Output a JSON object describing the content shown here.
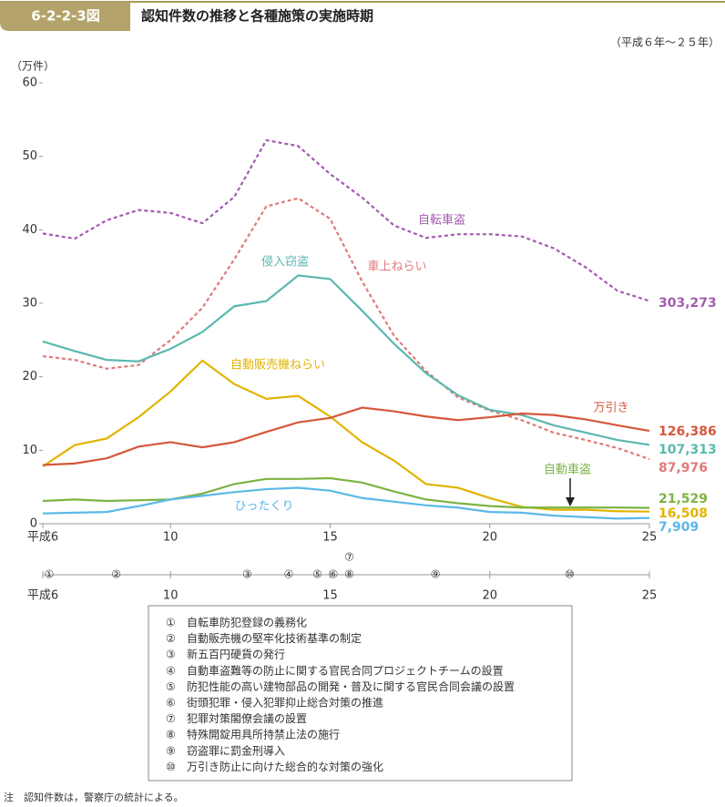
{
  "figure_number": "6-2-2-3図",
  "chart_data": {
    "type": "line",
    "title": "認知件数の推移と各種施策の実施時期",
    "subtitle": "（平成６年～２５年）",
    "y_label": "（万件）",
    "x": [
      6,
      7,
      8,
      9,
      10,
      11,
      12,
      13,
      14,
      15,
      16,
      17,
      18,
      19,
      20,
      21,
      22,
      23,
      24,
      25
    ],
    "xlim": [
      6,
      25
    ],
    "xticks": [
      {
        "value": 6,
        "label": "平成6"
      },
      10,
      15,
      20,
      25
    ],
    "ylim": [
      0,
      60
    ],
    "yticks": [
      0,
      10,
      20,
      30,
      40,
      50,
      60
    ],
    "series": [
      {
        "name": "自転車盗",
        "color": "#a45bb0",
        "style": "dashed",
        "values": [
          39.5,
          38.8,
          41.3,
          42.7,
          42.3,
          40.9,
          44.5,
          52.2,
          51.4,
          47.6,
          44.4,
          40.6,
          38.9,
          39.4,
          39.4,
          39.1,
          37.5,
          34.9,
          31.7,
          30.3273
        ],
        "value_labels": [
          null,
          null,
          null,
          null,
          null,
          null,
          null,
          null,
          null,
          null,
          null,
          null,
          null,
          null,
          null,
          null,
          null,
          null,
          null,
          "303,273"
        ]
      },
      {
        "name": "車上ねらい",
        "color": "#e07a7a",
        "style": "dashed",
        "values": [
          22.8,
          22.3,
          21.1,
          21.6,
          25.0,
          29.4,
          36.0,
          43.2,
          44.3,
          41.5,
          33.0,
          25.6,
          20.8,
          17.2,
          15.4,
          14.1,
          12.4,
          11.4,
          10.3,
          8.7976
        ],
        "value_labels": [
          null,
          null,
          null,
          null,
          null,
          null,
          null,
          null,
          null,
          null,
          null,
          null,
          null,
          null,
          null,
          null,
          null,
          null,
          null,
          "87,976"
        ]
      },
      {
        "name": "侵入窃盗",
        "color": "#5bb8b0",
        "style": "solid",
        "values": [
          24.8,
          23.5,
          22.3,
          22.1,
          23.8,
          26.1,
          29.6,
          30.3,
          33.8,
          33.3,
          29.0,
          24.5,
          20.5,
          17.5,
          15.5,
          14.8,
          13.4,
          12.4,
          11.4,
          10.7313
        ],
        "value_labels": [
          null,
          null,
          null,
          null,
          null,
          null,
          null,
          null,
          null,
          null,
          null,
          null,
          null,
          null,
          null,
          null,
          null,
          null,
          null,
          "107,313"
        ]
      },
      {
        "name": "自動販売機ねらい",
        "color": "#e2b300",
        "style": "solid",
        "values": [
          7.8,
          10.7,
          11.6,
          14.5,
          18.0,
          22.2,
          19.0,
          17.0,
          17.4,
          14.6,
          11.1,
          8.6,
          5.4,
          4.9,
          3.5,
          2.3,
          1.9,
          1.9,
          1.7,
          1.6508
        ],
        "value_labels": [
          null,
          null,
          null,
          null,
          null,
          null,
          null,
          null,
          null,
          null,
          null,
          null,
          null,
          null,
          null,
          null,
          null,
          null,
          null,
          "16,508"
        ]
      },
      {
        "name": "万引き",
        "color": "#d5573b",
        "style": "solid",
        "values": [
          8.0,
          8.2,
          8.9,
          10.5,
          11.1,
          10.4,
          11.1,
          12.5,
          13.8,
          14.4,
          15.8,
          15.3,
          14.6,
          14.1,
          14.5,
          15.0,
          14.8,
          14.2,
          13.4,
          12.6386
        ],
        "value_labels": [
          null,
          null,
          null,
          null,
          null,
          null,
          null,
          null,
          null,
          null,
          null,
          null,
          null,
          null,
          null,
          null,
          null,
          null,
          null,
          "126,386"
        ]
      },
      {
        "name": "自動車盗",
        "color": "#7cb342",
        "style": "solid",
        "values": [
          3.1,
          3.3,
          3.1,
          3.2,
          3.3,
          4.1,
          5.4,
          6.1,
          6.1,
          6.2,
          5.6,
          4.4,
          3.3,
          2.8,
          2.4,
          2.2,
          2.2,
          2.2,
          2.2,
          2.1529
        ],
        "value_labels": [
          null,
          null,
          null,
          null,
          null,
          null,
          null,
          null,
          null,
          null,
          null,
          null,
          null,
          null,
          null,
          null,
          null,
          null,
          null,
          "21,529"
        ]
      },
      {
        "name": "ひったくり",
        "color": "#5bb8e8",
        "style": "solid",
        "values": [
          1.4,
          1.5,
          1.6,
          2.4,
          3.3,
          3.8,
          4.3,
          4.7,
          4.9,
          4.5,
          3.5,
          3.0,
          2.5,
          2.2,
          1.6,
          1.5,
          1.1,
          0.9,
          0.7,
          0.7909
        ],
        "value_labels": [
          null,
          null,
          null,
          null,
          null,
          null,
          null,
          null,
          null,
          null,
          null,
          null,
          null,
          null,
          null,
          null,
          null,
          null,
          null,
          "7,909"
        ]
      }
    ],
    "policies": [
      {
        "mark": "①",
        "x": 6.2,
        "text": "自転車防犯登録の義務化"
      },
      {
        "mark": "②",
        "x": 8.3,
        "text": "自動販売機の堅牢化技術基準の制定"
      },
      {
        "mark": "③",
        "x": 12.4,
        "text": "新五百円硬貨の発行"
      },
      {
        "mark": "④",
        "x": 13.7,
        "text": "自動車盗難等の防止に関する官民合同プロジェクトチームの設置"
      },
      {
        "mark": "⑤",
        "x": 14.6,
        "text": "防犯性能の高い建物部品の開発・普及に関する官民合同会議の設置"
      },
      {
        "mark": "⑥",
        "x": 15.1,
        "text": "街頭犯罪・侵入犯罪抑止総合対策の推進"
      },
      {
        "mark": "⑦",
        "x": 15.6,
        "text": "犯罪対策閣僚会議の設置"
      },
      {
        "mark": "⑧",
        "x": 15.6,
        "text": "特殊開錠用具所持禁止法の施行"
      },
      {
        "mark": "⑨",
        "x": 18.3,
        "text": "窃盗罪に罰金刑導入"
      },
      {
        "mark": "⑩",
        "x": 22.5,
        "text": "万引き防止に向けた総合的な対策の強化"
      }
    ],
    "note": "注　認知件数は，警察庁の統計による。"
  }
}
